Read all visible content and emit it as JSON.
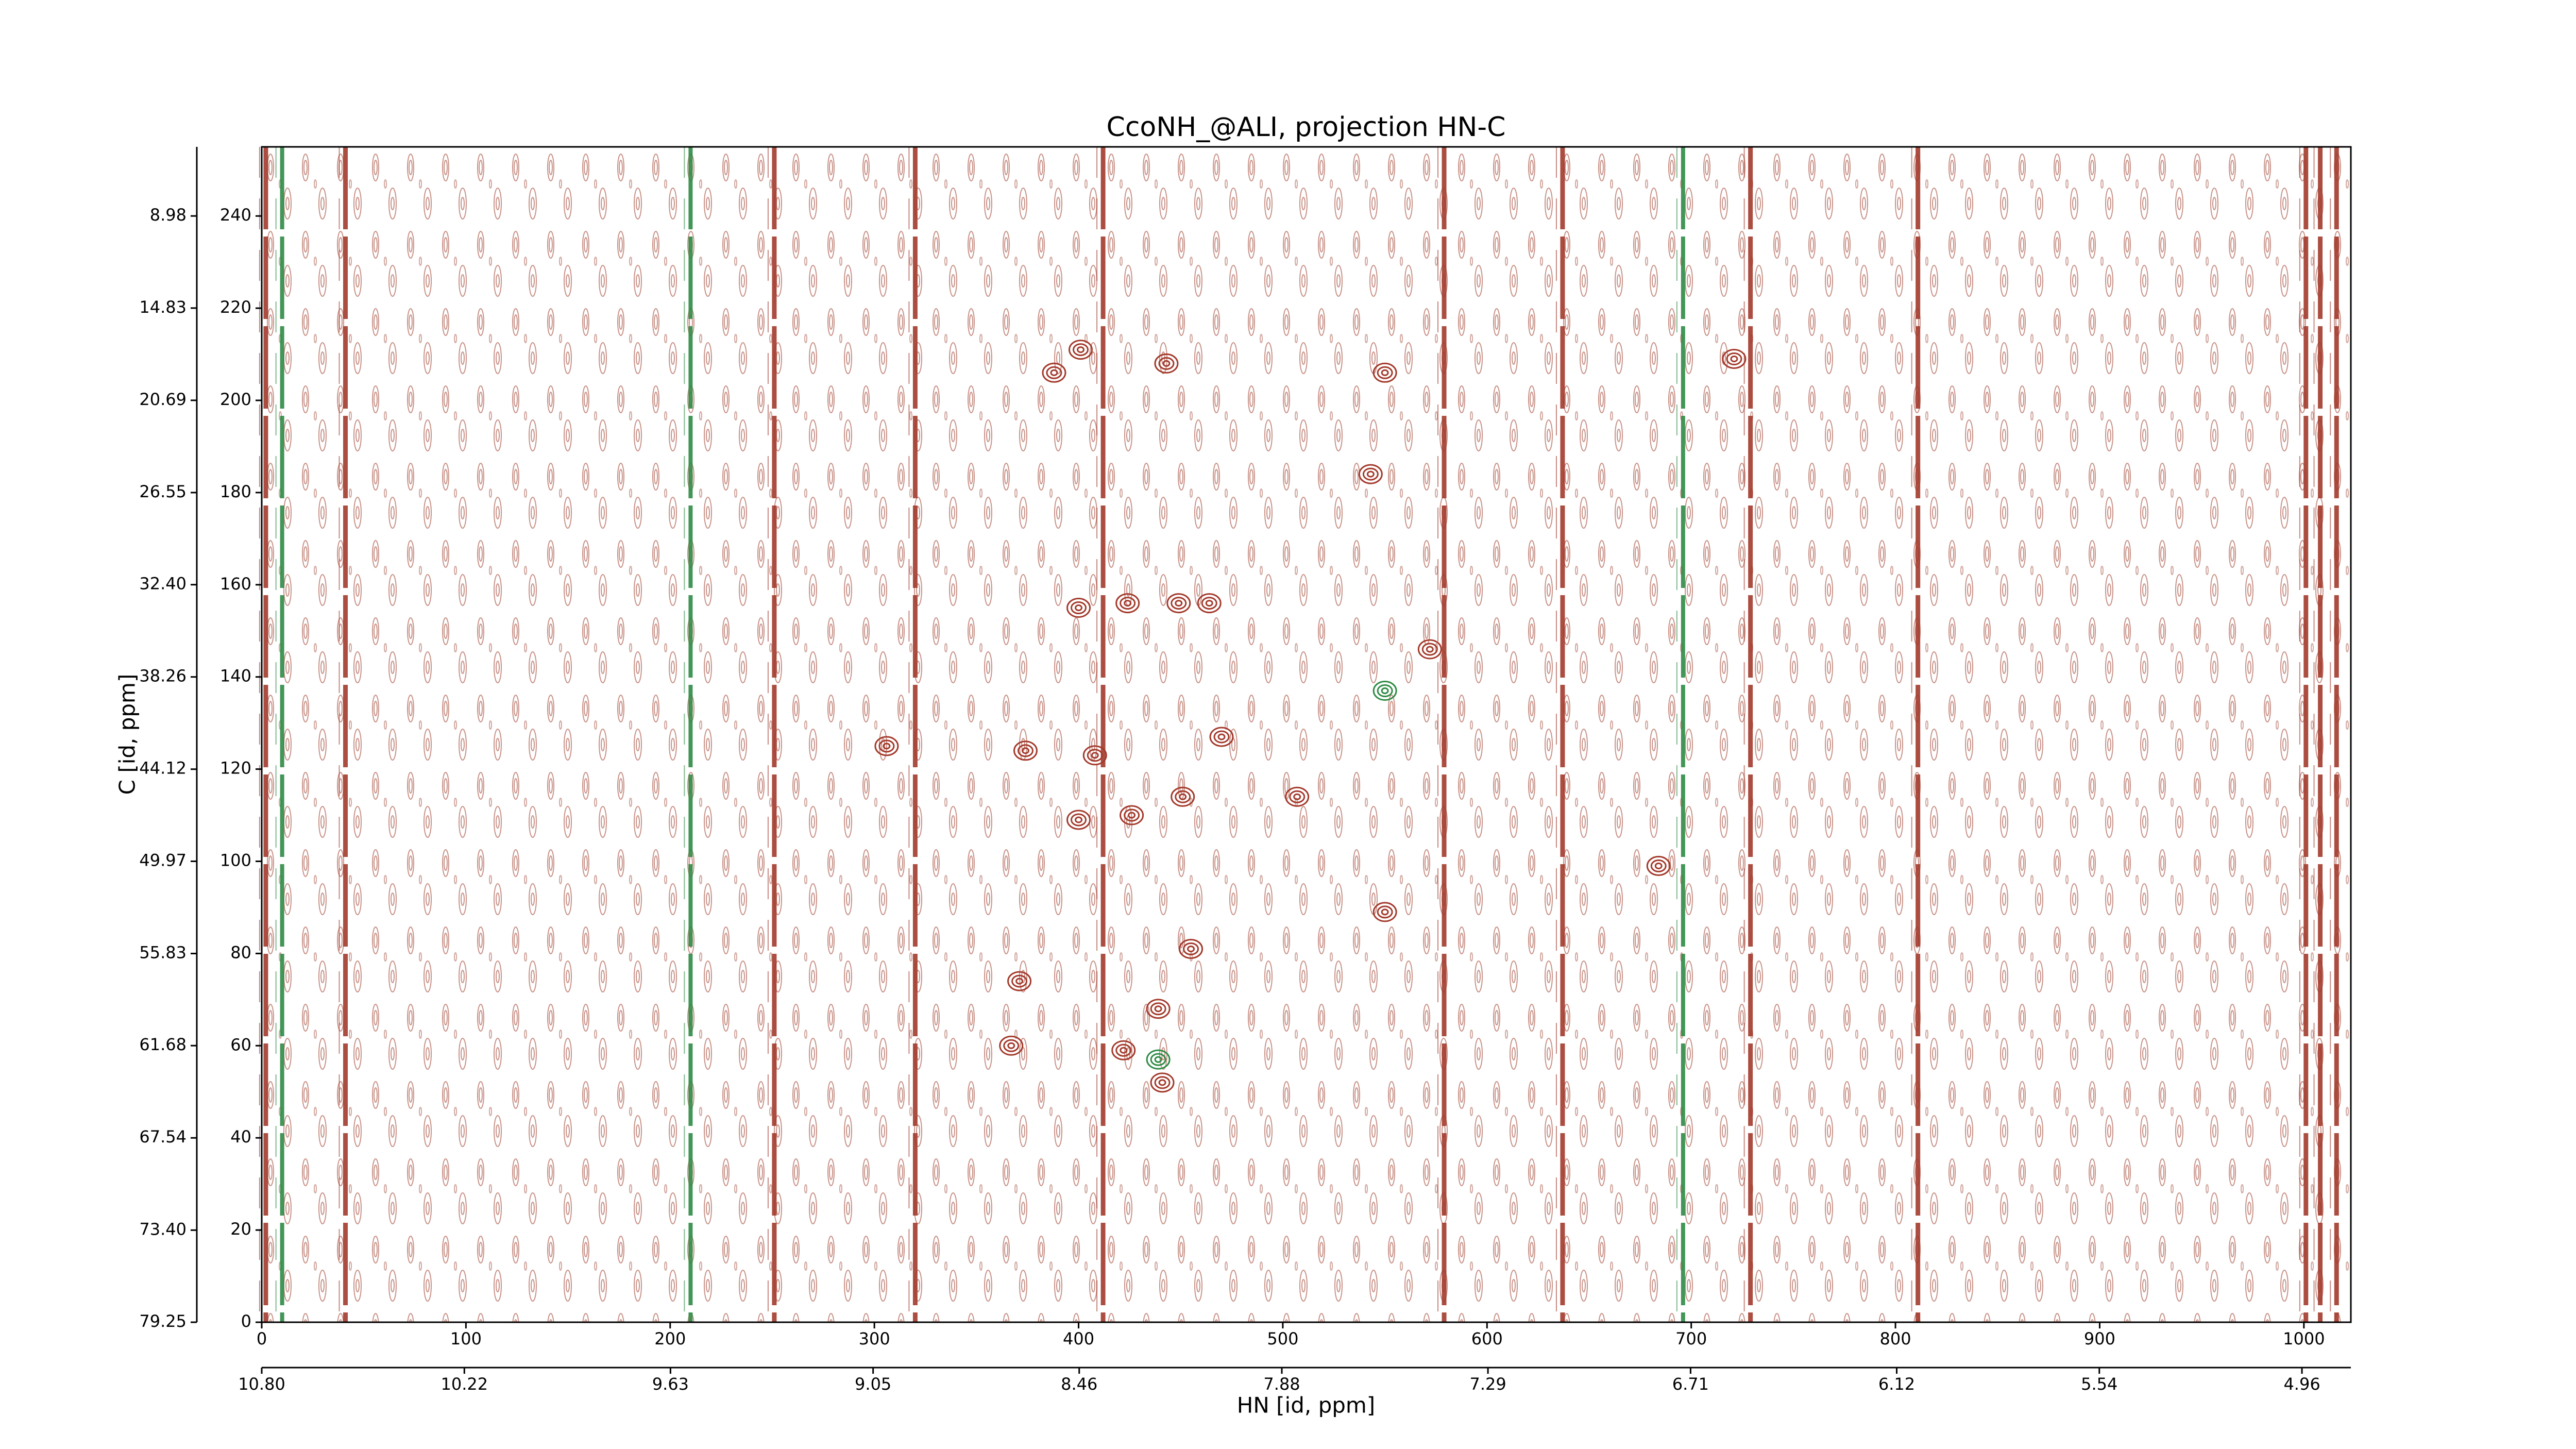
{
  "chart_data": {
    "type": "contour",
    "title": "CcoNH_@ALI, projection HN-C",
    "xlabel": "HN [id, ppm]",
    "ylabel": "C [id, ppm]",
    "xlim": [
      0,
      1023
    ],
    "xticks": [
      0,
      100,
      200,
      300,
      400,
      500,
      600,
      700,
      800,
      900,
      1000
    ],
    "ylim": [
      0,
      255
    ],
    "yticks": [
      0,
      20,
      40,
      60,
      80,
      100,
      120,
      140,
      160,
      180,
      200,
      220,
      240
    ],
    "x2lim": [
      10.8,
      4.82
    ],
    "x2ticks": [
      {
        "value": 10.8,
        "label": "10.80"
      },
      10.22,
      9.63,
      9.05,
      8.46,
      7.88,
      7.29,
      6.71,
      6.12,
      5.54,
      4.96
    ],
    "y2lim": [
      79.25,
      4.59
    ],
    "y2ticks": [
      79.25,
      {
        "value": 73.4,
        "label": "73.40"
      },
      67.54,
      61.68,
      55.83,
      49.97,
      44.12,
      38.26,
      {
        "value": 32.4,
        "label": "32.40"
      },
      26.55,
      20.69,
      14.83,
      8.98
    ],
    "positive_color": "#a33a2c",
    "negative_color": "#2e8b45",
    "ridges_x": [
      2,
      41,
      251,
      320,
      412,
      579,
      637,
      729,
      811,
      1001,
      1008,
      1016
    ],
    "negative_ridges_x": [
      10,
      210,
      696
    ],
    "peaks_x": [
      388,
      401,
      443,
      550,
      543,
      400,
      424,
      449,
      464,
      572,
      306,
      374,
      408,
      470,
      507,
      451,
      400,
      426,
      550,
      684,
      455,
      371,
      439,
      367,
      422,
      441,
      721
    ],
    "peaks_y": [
      206,
      211,
      208,
      206,
      184,
      155,
      156,
      156,
      156,
      146,
      125,
      124,
      123,
      127,
      114,
      114,
      109,
      110,
      89,
      99,
      81,
      74,
      68,
      60,
      59,
      52,
      209
    ],
    "negative_peaks_x": [
      550,
      439
    ],
    "negative_peaks_y": [
      137,
      57
    ]
  }
}
